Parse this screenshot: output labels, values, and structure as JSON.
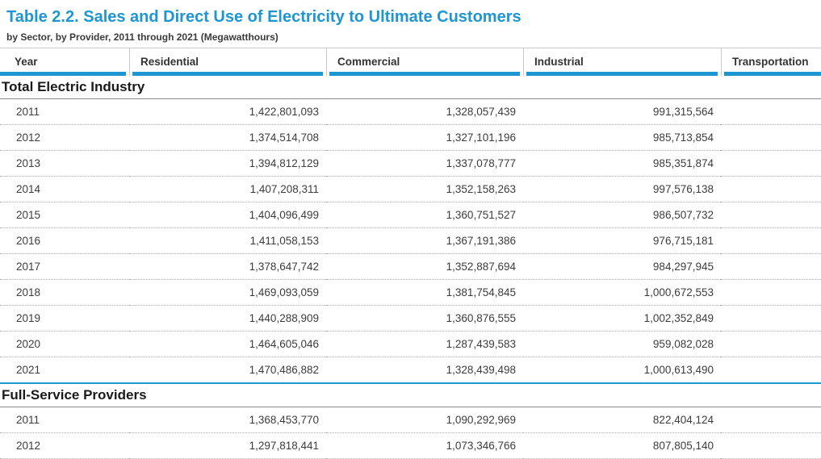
{
  "page": {
    "title": "Table 2.2. Sales and Direct Use of Electricity to Ultimate Customers",
    "subtitle": "by Sector, by Provider, 2011 through 2021 (Megawatthours)"
  },
  "colors": {
    "accent_blue": "#1e96d2",
    "grid_gray": "#c9c9c9",
    "section_line_gray": "#8a8a8a"
  },
  "table": {
    "columns": [
      "Year",
      "Residential",
      "Commercial",
      "Industrial",
      "Transportation"
    ],
    "sections": [
      {
        "name": "Total Electric Industry",
        "rows": [
          {
            "year": "2011",
            "residential": "1,422,801,093",
            "commercial": "1,328,057,439",
            "industrial": "991,315,564",
            "transportation": ""
          },
          {
            "year": "2012",
            "residential": "1,374,514,708",
            "commercial": "1,327,101,196",
            "industrial": "985,713,854",
            "transportation": ""
          },
          {
            "year": "2013",
            "residential": "1,394,812,129",
            "commercial": "1,337,078,777",
            "industrial": "985,351,874",
            "transportation": ""
          },
          {
            "year": "2014",
            "residential": "1,407,208,311",
            "commercial": "1,352,158,263",
            "industrial": "997,576,138",
            "transportation": ""
          },
          {
            "year": "2015",
            "residential": "1,404,096,499",
            "commercial": "1,360,751,527",
            "industrial": "986,507,732",
            "transportation": ""
          },
          {
            "year": "2016",
            "residential": "1,411,058,153",
            "commercial": "1,367,191,386",
            "industrial": "976,715,181",
            "transportation": ""
          },
          {
            "year": "2017",
            "residential": "1,378,647,742",
            "commercial": "1,352,887,694",
            "industrial": "984,297,945",
            "transportation": ""
          },
          {
            "year": "2018",
            "residential": "1,469,093,059",
            "commercial": "1,381,754,845",
            "industrial": "1,000,672,553",
            "transportation": ""
          },
          {
            "year": "2019",
            "residential": "1,440,288,909",
            "commercial": "1,360,876,555",
            "industrial": "1,002,352,849",
            "transportation": ""
          },
          {
            "year": "2020",
            "residential": "1,464,605,046",
            "commercial": "1,287,439,583",
            "industrial": "959,082,028",
            "transportation": ""
          },
          {
            "year": "2021",
            "residential": "1,470,486,882",
            "commercial": "1,328,439,498",
            "industrial": "1,000,613,490",
            "transportation": ""
          }
        ]
      },
      {
        "name": "Full-Service Providers",
        "rows": [
          {
            "year": "2011",
            "residential": "1,368,453,770",
            "commercial": "1,090,292,969",
            "industrial": "822,404,124",
            "transportation": ""
          },
          {
            "year": "2012",
            "residential": "1,297,818,441",
            "commercial": "1,073,346,766",
            "industrial": "807,805,140",
            "transportation": ""
          }
        ]
      }
    ]
  }
}
